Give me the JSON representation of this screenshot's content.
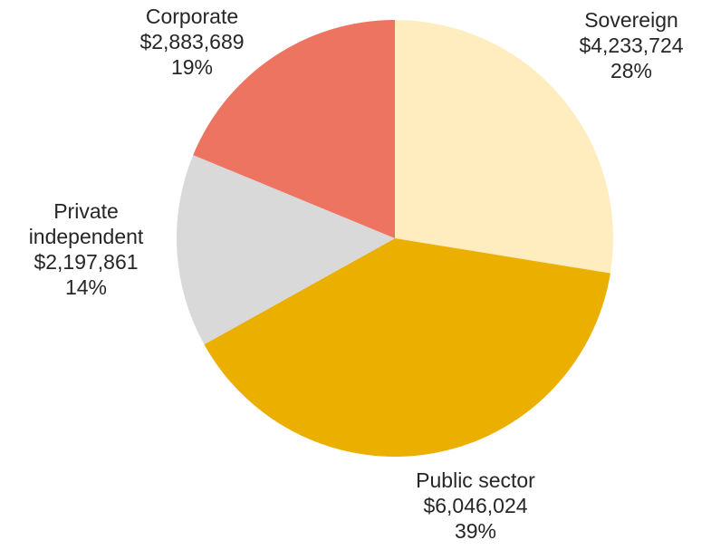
{
  "chart_data": {
    "type": "pie",
    "title": "",
    "start_angle_deg": 0,
    "direction": "clockwise",
    "slices": [
      {
        "name": "Sovereign",
        "label_lines": [
          "Sovereign"
        ],
        "value": 4233724,
        "value_label": "$4,233,724",
        "percent_label": "28%",
        "color": "#FFEDC0"
      },
      {
        "name": "Public sector",
        "label_lines": [
          "Public sector"
        ],
        "value": 6046024,
        "value_label": "$6,046,024",
        "percent_label": "39%",
        "color": "#EBAF00"
      },
      {
        "name": "Private independent",
        "label_lines": [
          "Private",
          "independent"
        ],
        "value": 2197861,
        "value_label": "$2,197,861",
        "percent_label": "14%",
        "color": "#D9D9D9"
      },
      {
        "name": "Corporate",
        "label_lines": [
          "Corporate"
        ],
        "value": 2883689,
        "value_label": "$2,883,689",
        "percent_label": "19%",
        "color": "#EC7460"
      }
    ]
  }
}
